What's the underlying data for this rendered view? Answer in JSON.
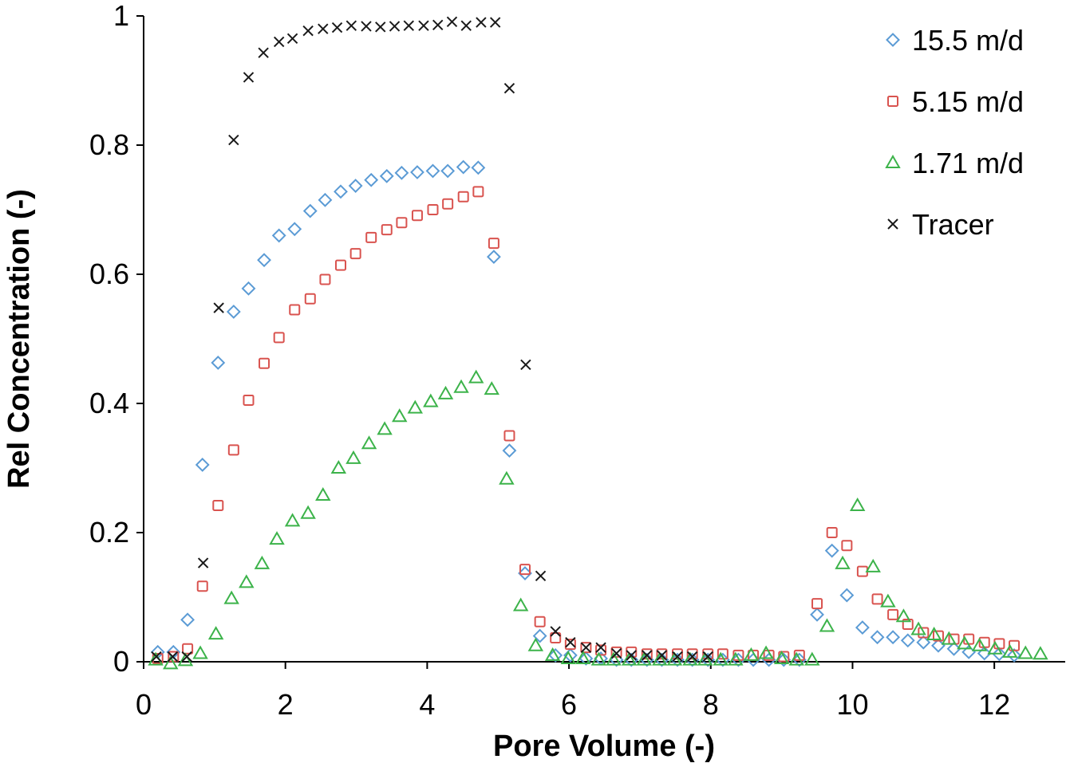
{
  "chart_data": {
    "type": "scatter",
    "title": "",
    "xlabel": "Pore Volume  (-)",
    "ylabel": "Rel Concentration  (-)",
    "xlim": [
      0,
      13
    ],
    "ylim": [
      0,
      1
    ],
    "xticks": [
      0,
      2,
      4,
      6,
      8,
      10,
      12
    ],
    "yticks": [
      0,
      0.2,
      0.4,
      0.6,
      0.8,
      1
    ],
    "ytick_labels": [
      "0",
      "0.2",
      "0.4",
      "0.6",
      "0.8",
      "1"
    ],
    "grid": false,
    "legend_position": "top-right",
    "series": [
      {
        "name": "15.5 m/d",
        "marker": "diamond",
        "color": "#5B9BD5",
        "x": [
          0.2,
          0.42,
          0.62,
          0.83,
          1.05,
          1.27,
          1.48,
          1.7,
          1.91,
          2.13,
          2.35,
          2.56,
          2.78,
          2.99,
          3.21,
          3.43,
          3.64,
          3.86,
          4.08,
          4.29,
          4.51,
          4.72,
          4.94,
          5.16,
          5.38,
          5.59,
          5.81,
          6.02,
          6.24,
          6.45,
          6.67,
          6.88,
          7.1,
          7.31,
          7.53,
          7.74,
          7.96,
          8.17,
          8.39,
          8.6,
          8.82,
          9.03,
          9.25,
          9.5,
          9.71,
          9.92,
          10.14,
          10.35,
          10.57,
          10.78,
          11.0,
          11.21,
          11.43,
          11.64,
          11.86,
          12.07,
          12.28
        ],
        "y": [
          0.015,
          0.015,
          0.065,
          0.305,
          0.463,
          0.542,
          0.578,
          0.622,
          0.66,
          0.67,
          0.698,
          0.715,
          0.728,
          0.737,
          0.746,
          0.752,
          0.757,
          0.758,
          0.76,
          0.76,
          0.766,
          0.765,
          0.627,
          0.327,
          0.137,
          0.04,
          0.01,
          0.01,
          0.005,
          0.005,
          0.003,
          0.003,
          0.003,
          0.003,
          0.003,
          0.003,
          0.003,
          0.003,
          0.003,
          0.003,
          0.003,
          0.003,
          0.003,
          0.073,
          0.172,
          0.103,
          0.053,
          0.038,
          0.038,
          0.033,
          0.03,
          0.025,
          0.02,
          0.015,
          0.013,
          0.012,
          0.01
        ]
      },
      {
        "name": "5.15 m/d",
        "marker": "square",
        "color": "#D9534F",
        "x": [
          0.2,
          0.42,
          0.62,
          0.83,
          1.05,
          1.27,
          1.48,
          1.7,
          1.91,
          2.13,
          2.35,
          2.56,
          2.78,
          2.99,
          3.21,
          3.43,
          3.64,
          3.86,
          4.08,
          4.29,
          4.51,
          4.72,
          4.94,
          5.16,
          5.38,
          5.59,
          5.81,
          6.02,
          6.24,
          6.45,
          6.67,
          6.88,
          7.1,
          7.31,
          7.53,
          7.74,
          7.96,
          8.17,
          8.39,
          8.6,
          8.82,
          9.03,
          9.25,
          9.5,
          9.71,
          9.92,
          10.14,
          10.35,
          10.57,
          10.78,
          11.0,
          11.21,
          11.43,
          11.64,
          11.86,
          12.07,
          12.28
        ],
        "y": [
          0.005,
          0.008,
          0.02,
          0.117,
          0.242,
          0.328,
          0.405,
          0.462,
          0.502,
          0.545,
          0.562,
          0.592,
          0.614,
          0.632,
          0.657,
          0.669,
          0.68,
          0.691,
          0.7,
          0.709,
          0.72,
          0.728,
          0.648,
          0.35,
          0.143,
          0.062,
          0.037,
          0.027,
          0.022,
          0.018,
          0.015,
          0.015,
          0.012,
          0.012,
          0.012,
          0.012,
          0.012,
          0.012,
          0.01,
          0.01,
          0.01,
          0.008,
          0.01,
          0.09,
          0.2,
          0.18,
          0.14,
          0.097,
          0.073,
          0.058,
          0.045,
          0.04,
          0.035,
          0.035,
          0.03,
          0.028,
          0.025
        ]
      },
      {
        "name": "1.71 m/d",
        "marker": "triangle",
        "color": "#3CB34A",
        "x": [
          0.17,
          0.38,
          0.59,
          0.8,
          1.02,
          1.24,
          1.45,
          1.67,
          1.88,
          2.1,
          2.32,
          2.53,
          2.75,
          2.96,
          3.18,
          3.4,
          3.61,
          3.83,
          4.05,
          4.26,
          4.48,
          4.69,
          4.91,
          5.12,
          5.32,
          5.53,
          5.77,
          5.99,
          6.2,
          6.42,
          6.63,
          6.85,
          7.06,
          7.28,
          7.49,
          7.71,
          7.92,
          8.14,
          8.35,
          8.57,
          8.78,
          9.0,
          9.21,
          9.43,
          9.64,
          9.86,
          10.07,
          10.29,
          10.5,
          10.72,
          10.93,
          11.15,
          11.36,
          11.58,
          11.79,
          12.01,
          12.22,
          12.44,
          12.65
        ],
        "y": [
          0.003,
          -0.003,
          0.002,
          0.013,
          0.043,
          0.098,
          0.123,
          0.152,
          0.19,
          0.218,
          0.23,
          0.258,
          0.3,
          0.315,
          0.338,
          0.36,
          0.38,
          0.393,
          0.403,
          0.415,
          0.425,
          0.44,
          0.422,
          0.283,
          0.087,
          0.025,
          0.01,
          0.005,
          0.005,
          0.003,
          0.003,
          0.003,
          0.003,
          0.003,
          0.003,
          0.003,
          0.003,
          0.003,
          0.003,
          0.01,
          0.013,
          0.005,
          0.003,
          0.003,
          0.055,
          0.152,
          0.242,
          0.147,
          0.093,
          0.07,
          0.05,
          0.042,
          0.035,
          0.028,
          0.025,
          0.02,
          0.015,
          0.013,
          0.012
        ]
      },
      {
        "name": "Tracer",
        "marker": "x",
        "color": "#1a1a1a",
        "x": [
          0.18,
          0.41,
          0.61,
          0.84,
          1.06,
          1.27,
          1.48,
          1.69,
          1.91,
          2.1,
          2.32,
          2.53,
          2.73,
          2.93,
          3.14,
          3.34,
          3.54,
          3.74,
          3.95,
          4.15,
          4.35,
          4.55,
          4.76,
          4.96,
          5.16,
          5.39,
          5.6,
          5.81,
          6.02,
          6.24,
          6.45,
          6.67,
          6.88,
          7.1,
          7.31,
          7.53,
          7.74,
          7.96
        ],
        "y": [
          0.008,
          0.008,
          0.008,
          0.153,
          0.548,
          0.808,
          0.905,
          0.943,
          0.96,
          0.965,
          0.977,
          0.98,
          0.982,
          0.985,
          0.984,
          0.983,
          0.984,
          0.985,
          0.985,
          0.986,
          0.991,
          0.985,
          0.99,
          0.99,
          0.888,
          0.46,
          0.133,
          0.047,
          0.03,
          0.022,
          0.022,
          0.013,
          0.01,
          0.01,
          0.01,
          0.008,
          0.008,
          0.008
        ]
      }
    ]
  }
}
